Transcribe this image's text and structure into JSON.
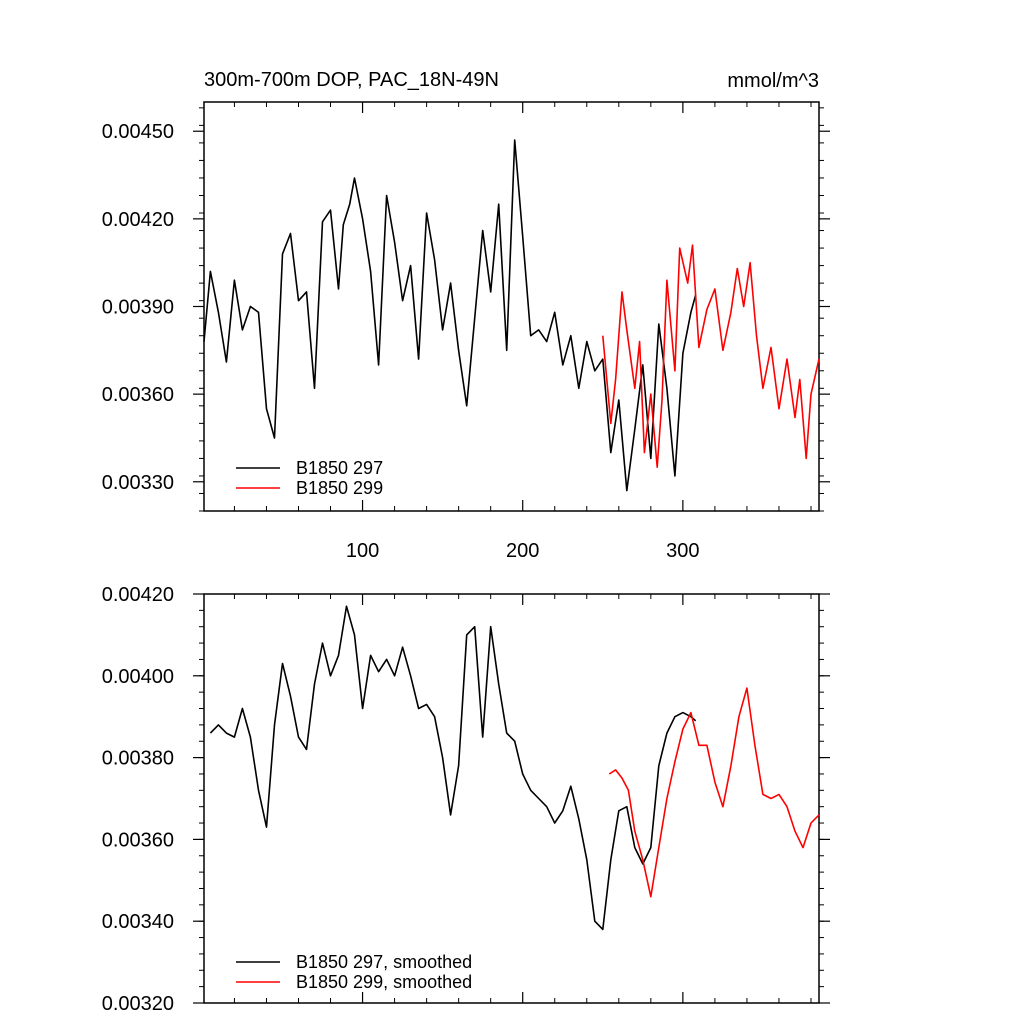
{
  "chart_data": [
    {
      "type": "line",
      "title": "300m-700m DOP, PAC_18N-49N",
      "units": "mmol/m^3",
      "xlim": [
        1,
        385
      ],
      "ylim": [
        0.0032,
        0.0046
      ],
      "xticks": [
        100,
        200,
        300
      ],
      "xtick_labels": [
        "100",
        "200",
        "300"
      ],
      "yticks": [
        0.0033,
        0.0036,
        0.0039,
        0.0042,
        0.0045
      ],
      "ytick_labels": [
        "0.00330",
        "0.00360",
        "0.00390",
        "0.00420",
        "0.00450"
      ],
      "legend": "bottom-left",
      "series": [
        {
          "name": "B1850 297",
          "color": "#000000",
          "x": [
            1,
            5,
            10,
            15,
            20,
            25,
            30,
            35,
            40,
            45,
            50,
            55,
            60,
            65,
            70,
            75,
            80,
            85,
            88,
            92,
            95,
            100,
            105,
            110,
            115,
            120,
            125,
            130,
            135,
            140,
            145,
            150,
            155,
            160,
            165,
            170,
            175,
            180,
            185,
            190,
            195,
            200,
            205,
            210,
            215,
            220,
            225,
            230,
            235,
            240,
            245,
            250,
            255,
            260,
            265,
            270,
            275,
            280,
            285,
            290,
            295,
            300,
            305,
            308
          ],
          "y": [
            0.00378,
            0.00402,
            0.00388,
            0.00371,
            0.00399,
            0.00382,
            0.0039,
            0.00388,
            0.00355,
            0.00345,
            0.00408,
            0.00415,
            0.00392,
            0.00395,
            0.00362,
            0.00419,
            0.00423,
            0.00396,
            0.00418,
            0.00425,
            0.00434,
            0.0042,
            0.00402,
            0.0037,
            0.00428,
            0.00412,
            0.00392,
            0.00404,
            0.00372,
            0.00422,
            0.00406,
            0.00382,
            0.00398,
            0.00375,
            0.00356,
            0.00386,
            0.00416,
            0.00395,
            0.00425,
            0.00375,
            0.00447,
            0.00414,
            0.0038,
            0.00382,
            0.00378,
            0.00388,
            0.0037,
            0.0038,
            0.00362,
            0.00378,
            0.00368,
            0.00372,
            0.0034,
            0.00358,
            0.00327,
            0.00348,
            0.0037,
            0.00338,
            0.00384,
            0.00362,
            0.00332,
            0.00374,
            0.00388,
            0.00394
          ]
        },
        {
          "name": "B1850 299",
          "color": "#ff0000",
          "x": [
            250,
            255,
            258,
            262,
            265,
            270,
            273,
            276,
            280,
            284,
            287,
            290,
            295,
            298,
            303,
            306,
            310,
            315,
            320,
            325,
            330,
            334,
            338,
            342,
            346,
            350,
            355,
            360,
            365,
            370,
            373,
            377,
            380,
            385
          ],
          "y": [
            0.0038,
            0.0035,
            0.00365,
            0.00395,
            0.00382,
            0.00362,
            0.00378,
            0.0034,
            0.0036,
            0.00335,
            0.00358,
            0.00399,
            0.00368,
            0.0041,
            0.00398,
            0.00411,
            0.00376,
            0.00389,
            0.00396,
            0.00375,
            0.00388,
            0.00403,
            0.0039,
            0.00405,
            0.0038,
            0.00362,
            0.00376,
            0.00355,
            0.00372,
            0.00352,
            0.00365,
            0.00338,
            0.0036,
            0.00372
          ]
        }
      ]
    },
    {
      "type": "line",
      "title": "",
      "xlim": [
        1,
        385
      ],
      "ylim": [
        0.0032,
        0.0042
      ],
      "xticks": [
        100,
        200,
        300
      ],
      "xtick_labels": [],
      "yticks": [
        0.0032,
        0.0034,
        0.0036,
        0.0038,
        0.004,
        0.0042
      ],
      "ytick_labels": [
        "0.00320",
        "0.00340",
        "0.00360",
        "0.00380",
        "0.00400",
        "0.00420"
      ],
      "legend": "bottom-left",
      "series": [
        {
          "name": "B1850 297, smoothed",
          "color": "#000000",
          "x": [
            5,
            10,
            15,
            20,
            25,
            30,
            35,
            40,
            45,
            50,
            55,
            60,
            65,
            70,
            75,
            80,
            85,
            90,
            95,
            100,
            105,
            110,
            115,
            120,
            125,
            130,
            135,
            140,
            145,
            150,
            155,
            160,
            165,
            170,
            175,
            180,
            185,
            190,
            195,
            200,
            205,
            210,
            215,
            220,
            225,
            230,
            235,
            240,
            245,
            250,
            255,
            260,
            265,
            270,
            275,
            280,
            285,
            290,
            295,
            300,
            305,
            308
          ],
          "y": [
            0.00386,
            0.00388,
            0.00386,
            0.00385,
            0.00392,
            0.00385,
            0.00372,
            0.00363,
            0.00388,
            0.00403,
            0.00395,
            0.00385,
            0.00382,
            0.00398,
            0.00408,
            0.004,
            0.00405,
            0.00417,
            0.0041,
            0.00392,
            0.00405,
            0.00401,
            0.00404,
            0.004,
            0.00407,
            0.004,
            0.00392,
            0.00393,
            0.0039,
            0.0038,
            0.00366,
            0.00378,
            0.0041,
            0.00412,
            0.00385,
            0.00412,
            0.00398,
            0.00386,
            0.00384,
            0.00376,
            0.00372,
            0.0037,
            0.00368,
            0.00364,
            0.00367,
            0.00373,
            0.00365,
            0.00355,
            0.0034,
            0.00338,
            0.00355,
            0.00367,
            0.00368,
            0.00358,
            0.00354,
            0.00358,
            0.00378,
            0.00386,
            0.0039,
            0.00391,
            0.0039,
            0.00389
          ]
        },
        {
          "name": "B1850 299, smoothed",
          "color": "#ff0000",
          "x": [
            254,
            258,
            262,
            266,
            270,
            275,
            280,
            285,
            290,
            295,
            300,
            305,
            310,
            315,
            320,
            325,
            330,
            335,
            340,
            345,
            350,
            355,
            360,
            365,
            370,
            375,
            380,
            385
          ],
          "y": [
            0.00376,
            0.00377,
            0.00375,
            0.00372,
            0.00362,
            0.00355,
            0.00346,
            0.00358,
            0.0037,
            0.00379,
            0.00387,
            0.00391,
            0.00383,
            0.00383,
            0.00374,
            0.00368,
            0.00378,
            0.0039,
            0.00397,
            0.00383,
            0.00371,
            0.0037,
            0.00371,
            0.00368,
            0.00362,
            0.00358,
            0.00364,
            0.00366
          ]
        }
      ]
    }
  ]
}
